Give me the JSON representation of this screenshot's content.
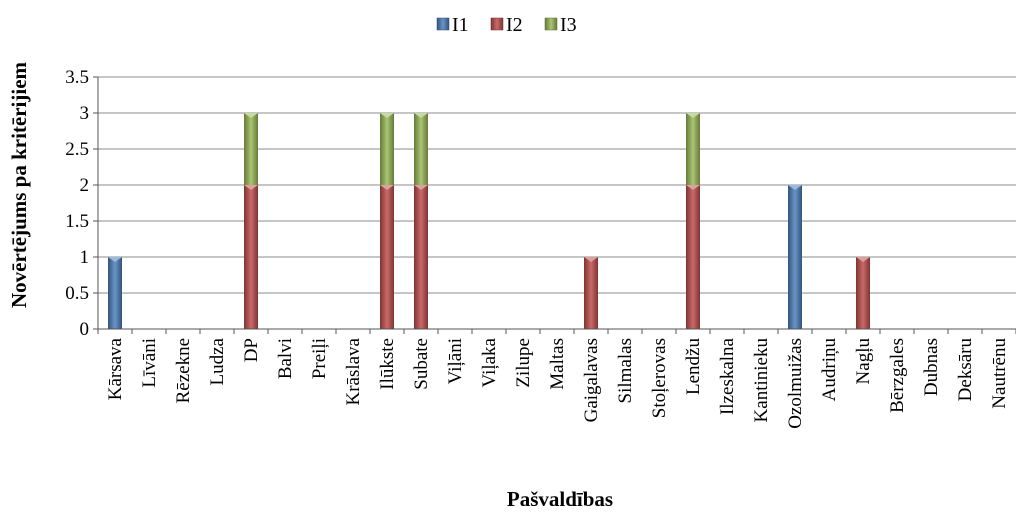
{
  "chart_data": {
    "type": "bar",
    "stacked": true,
    "xlabel": "Pašvaldības",
    "ylabel": "Novērtējums pa kritērijiem",
    "ylim": [
      0,
      3.5
    ],
    "yticks": [
      "0",
      "0.5",
      "1",
      "1.5",
      "2",
      "2.5",
      "3",
      "3.5"
    ],
    "grid": true,
    "legend_position": "top-center",
    "categories": [
      "Kārsava",
      "Līvāni",
      "Rēzekne",
      "Ludza",
      "DP",
      "Balvi",
      "Preiļi",
      "Krāslava",
      "Ilūkste",
      "Subate",
      "Viļāni",
      "Viļaka",
      "Zilupe",
      "Maltas",
      "Gaigalavas",
      "Silmalas",
      "Stoļerovas",
      "Lendžu",
      "Ilzeskalna",
      "Kantinieku",
      "Ozolmuižas",
      "Audriņu",
      "Nagļu",
      "Bērzgales",
      "Dubnas",
      "Deksāru",
      "Nautrēnu"
    ],
    "series": [
      {
        "name": "I1",
        "color": "#4f81bd",
        "values": [
          1,
          0,
          0,
          0,
          0,
          0,
          0,
          0,
          0,
          0,
          0,
          0,
          0,
          0,
          0,
          0,
          0,
          0,
          0,
          0,
          2,
          0,
          0,
          0,
          0,
          0,
          0
        ]
      },
      {
        "name": "I2",
        "color": "#c0504d",
        "values": [
          0,
          0,
          0,
          0,
          2,
          0,
          0,
          0,
          2,
          2,
          0,
          0,
          0,
          0,
          1,
          0,
          0,
          2,
          0,
          0,
          0,
          0,
          1,
          0,
          0,
          0,
          0
        ]
      },
      {
        "name": "I3",
        "color": "#9bbb59",
        "values": [
          0,
          0,
          0,
          0,
          1,
          0,
          0,
          0,
          1,
          1,
          0,
          0,
          0,
          0,
          0,
          0,
          0,
          1,
          0,
          0,
          0,
          0,
          0,
          0,
          0,
          0,
          0
        ]
      }
    ]
  }
}
